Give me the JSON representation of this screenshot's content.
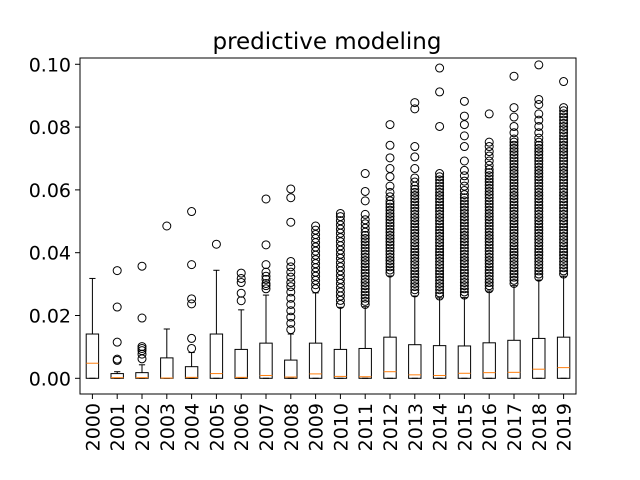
{
  "chart_data": {
    "type": "boxplot",
    "title": "predictive modeling",
    "xlabel": "",
    "ylabel": "",
    "ylim": [
      -0.005,
      0.102
    ],
    "yticks": [
      0.0,
      0.02,
      0.04,
      0.06,
      0.08,
      0.1
    ],
    "ytick_labels": [
      "0.00",
      "0.02",
      "0.04",
      "0.06",
      "0.08",
      "0.10"
    ],
    "grid": false,
    "legend": "none",
    "colors": {
      "box": "#000000",
      "median": "#ff7f0e",
      "flier": "#000000"
    },
    "categories": [
      "2000",
      "2001",
      "2002",
      "2003",
      "2004",
      "2005",
      "2006",
      "2007",
      "2008",
      "2009",
      "2010",
      "2011",
      "2012",
      "2013",
      "2014",
      "2015",
      "2016",
      "2017",
      "2018",
      "2019"
    ],
    "boxes": [
      {
        "year": "2000",
        "whislo": 0.0,
        "q1": 0.0,
        "med": 0.0048,
        "q3": 0.0141,
        "whishi": 0.0318,
        "fliers": []
      },
      {
        "year": "2001",
        "whislo": 0.0,
        "q1": 0.0,
        "med": 0.0002,
        "q3": 0.0015,
        "whishi": 0.0021,
        "fliers": [
          0.0057,
          0.0061,
          0.0115,
          0.0227,
          0.0343
        ]
      },
      {
        "year": "2002",
        "whislo": 0.0,
        "q1": 0.0,
        "med": 0.0002,
        "q3": 0.0018,
        "whishi": 0.0043,
        "fliers": [
          0.0062,
          0.0077,
          0.0088,
          0.0095,
          0.0101,
          0.0192,
          0.0357
        ]
      },
      {
        "year": "2003",
        "whislo": 0.0,
        "q1": 0.0,
        "med": 0.0001,
        "q3": 0.0065,
        "whishi": 0.0157,
        "fliers": [
          0.0485
        ]
      },
      {
        "year": "2004",
        "whislo": 0.0,
        "q1": 0.0,
        "med": 0.0003,
        "q3": 0.0037,
        "whishi": 0.0082,
        "fliers": [
          0.0095,
          0.0127,
          0.0237,
          0.0253,
          0.0362,
          0.0531
        ]
      },
      {
        "year": "2005",
        "whislo": 0.0,
        "q1": 0.0,
        "med": 0.0015,
        "q3": 0.0141,
        "whishi": 0.0344,
        "fliers": [
          0.0427
        ]
      },
      {
        "year": "2006",
        "whislo": 0.0,
        "q1": 0.0,
        "med": 0.0003,
        "q3": 0.0092,
        "whishi": 0.0218,
        "fliers": [
          0.0247,
          0.0271,
          0.0305,
          0.0318,
          0.0335
        ]
      },
      {
        "year": "2007",
        "whislo": 0.0,
        "q1": 0.0,
        "med": 0.0009,
        "q3": 0.0112,
        "whishi": 0.0265,
        "fliers": [
          0.0285,
          0.0295,
          0.0302,
          0.0315,
          0.0325,
          0.0338,
          0.0362,
          0.0425,
          0.0571
        ]
      },
      {
        "year": "2008",
        "whislo": 0.0,
        "q1": 0.0,
        "med": 0.0004,
        "q3": 0.0058,
        "whishi": 0.0141,
        "fliers": [
          0.0155,
          0.0175,
          0.0195,
          0.0215,
          0.0235,
          0.0255,
          0.0275,
          0.0292,
          0.0305,
          0.0322,
          0.0338,
          0.0355,
          0.0372,
          0.0497,
          0.0575,
          0.0603
        ]
      },
      {
        "year": "2009",
        "whislo": 0.0,
        "q1": 0.0,
        "med": 0.0014,
        "q3": 0.0112,
        "whishi": 0.0272,
        "fliers": [
          0.0285,
          0.0298,
          0.0312,
          0.0325,
          0.0338,
          0.0352,
          0.0365,
          0.0378,
          0.0392,
          0.0405,
          0.0418,
          0.0432,
          0.0445,
          0.0458,
          0.0472,
          0.0485
        ]
      },
      {
        "year": "2010",
        "whislo": 0.0,
        "q1": 0.0,
        "med": 0.0006,
        "q3": 0.0092,
        "whishi": 0.0226,
        "fliers": [
          0.0235,
          0.0248,
          0.0262,
          0.0275,
          0.0288,
          0.0302,
          0.0315,
          0.0328,
          0.0342,
          0.0355,
          0.0368,
          0.0382,
          0.0395,
          0.0408,
          0.0422,
          0.0435,
          0.0448,
          0.0462,
          0.0475,
          0.0488,
          0.0502,
          0.0515,
          0.0525
        ]
      },
      {
        "year": "2011",
        "whislo": 0.0,
        "q1": 0.0,
        "med": 0.0005,
        "q3": 0.0095,
        "whishi": 0.0228,
        "fliers": [
          0.0235,
          0.0245,
          0.0255,
          0.0265,
          0.0275,
          0.0285,
          0.0295,
          0.0305,
          0.0315,
          0.0325,
          0.0335,
          0.0345,
          0.0355,
          0.0365,
          0.0375,
          0.0385,
          0.0395,
          0.0405,
          0.0415,
          0.0425,
          0.0435,
          0.0445,
          0.0455,
          0.0465,
          0.0478,
          0.0492,
          0.0505,
          0.0522,
          0.0565,
          0.0595,
          0.0652
        ]
      },
      {
        "year": "2012",
        "whislo": 0.0,
        "q1": 0.0,
        "med": 0.0021,
        "q3": 0.0131,
        "whishi": 0.0326,
        "fliers": [
          0.0335,
          0.0345,
          0.0355,
          0.0365,
          0.0375,
          0.0385,
          0.0395,
          0.0405,
          0.0415,
          0.0425,
          0.0435,
          0.0445,
          0.0455,
          0.0465,
          0.0475,
          0.0485,
          0.0495,
          0.0505,
          0.0515,
          0.0525,
          0.0535,
          0.0545,
          0.0555,
          0.0565,
          0.0578,
          0.0592,
          0.0612,
          0.0642,
          0.0668,
          0.0702,
          0.0742,
          0.0808
        ]
      },
      {
        "year": "2013",
        "whislo": 0.0,
        "q1": 0.0,
        "med": 0.0011,
        "q3": 0.0107,
        "whishi": 0.0262,
        "fliers": [
          0.0272,
          0.0282,
          0.0292,
          0.0302,
          0.0312,
          0.0322,
          0.0332,
          0.0342,
          0.0352,
          0.0362,
          0.0372,
          0.0382,
          0.0392,
          0.0402,
          0.0412,
          0.0422,
          0.0432,
          0.0442,
          0.0452,
          0.0462,
          0.0472,
          0.0482,
          0.0492,
          0.0502,
          0.0512,
          0.0522,
          0.0532,
          0.0542,
          0.0552,
          0.0562,
          0.0572,
          0.0582,
          0.0592,
          0.0602,
          0.0612,
          0.0625,
          0.0638,
          0.0668,
          0.0705,
          0.0738,
          0.0858,
          0.0878
        ]
      },
      {
        "year": "2014",
        "whislo": 0.0,
        "q1": 0.0,
        "med": 0.0009,
        "q3": 0.0104,
        "whishi": 0.0256,
        "fliers": [
          0.0262,
          0.0272,
          0.0282,
          0.0292,
          0.0302,
          0.0312,
          0.0322,
          0.0332,
          0.0342,
          0.0352,
          0.0362,
          0.0372,
          0.0382,
          0.0392,
          0.0402,
          0.0412,
          0.0422,
          0.0432,
          0.0442,
          0.0452,
          0.0462,
          0.0472,
          0.0482,
          0.0492,
          0.0502,
          0.0512,
          0.0522,
          0.0532,
          0.0542,
          0.0552,
          0.0562,
          0.0572,
          0.0582,
          0.0592,
          0.0602,
          0.0612,
          0.0622,
          0.0632,
          0.0642,
          0.0652,
          0.0802,
          0.0912,
          0.0988
        ]
      },
      {
        "year": "2015",
        "whislo": 0.0,
        "q1": 0.0,
        "med": 0.0016,
        "q3": 0.0103,
        "whishi": 0.0257,
        "fliers": [
          0.0265,
          0.0275,
          0.0285,
          0.0295,
          0.0305,
          0.0315,
          0.0325,
          0.0335,
          0.0345,
          0.0355,
          0.0365,
          0.0375,
          0.0385,
          0.0395,
          0.0405,
          0.0415,
          0.0425,
          0.0435,
          0.0445,
          0.0455,
          0.0465,
          0.0475,
          0.0485,
          0.0495,
          0.0505,
          0.0515,
          0.0525,
          0.0535,
          0.0545,
          0.0555,
          0.0565,
          0.0575,
          0.0585,
          0.0598,
          0.0612,
          0.0628,
          0.0645,
          0.0662,
          0.0692,
          0.0738,
          0.0772,
          0.0808,
          0.0835,
          0.0882
        ]
      },
      {
        "year": "2016",
        "whislo": 0.0,
        "q1": 0.0,
        "med": 0.0018,
        "q3": 0.0113,
        "whishi": 0.0278,
        "fliers": [
          0.0285,
          0.0295,
          0.0305,
          0.0315,
          0.0325,
          0.0335,
          0.0345,
          0.0355,
          0.0365,
          0.0375,
          0.0385,
          0.0395,
          0.0405,
          0.0415,
          0.0425,
          0.0435,
          0.0445,
          0.0455,
          0.0465,
          0.0475,
          0.0485,
          0.0495,
          0.0505,
          0.0515,
          0.0525,
          0.0535,
          0.0545,
          0.0555,
          0.0565,
          0.0575,
          0.0585,
          0.0595,
          0.0605,
          0.0615,
          0.0625,
          0.0635,
          0.0645,
          0.0655,
          0.0665,
          0.0678,
          0.0692,
          0.0708,
          0.0722,
          0.0738,
          0.0752,
          0.0842
        ]
      },
      {
        "year": "2017",
        "whislo": 0.0,
        "q1": 0.0,
        "med": 0.0019,
        "q3": 0.0121,
        "whishi": 0.0295,
        "fliers": [
          0.0302,
          0.0312,
          0.0322,
          0.0332,
          0.0342,
          0.0352,
          0.0362,
          0.0372,
          0.0382,
          0.0392,
          0.0402,
          0.0412,
          0.0422,
          0.0432,
          0.0442,
          0.0452,
          0.0462,
          0.0472,
          0.0482,
          0.0492,
          0.0502,
          0.0512,
          0.0522,
          0.0532,
          0.0542,
          0.0552,
          0.0562,
          0.0572,
          0.0582,
          0.0592,
          0.0602,
          0.0612,
          0.0622,
          0.0632,
          0.0642,
          0.0652,
          0.0662,
          0.0672,
          0.0682,
          0.0692,
          0.0702,
          0.0712,
          0.0722,
          0.0732,
          0.0742,
          0.0752,
          0.0762,
          0.0782,
          0.0802,
          0.0832,
          0.0862,
          0.0962
        ]
      },
      {
        "year": "2018",
        "whislo": 0.0,
        "q1": 0.0,
        "med": 0.0029,
        "q3": 0.0127,
        "whishi": 0.0313,
        "fliers": [
          0.0322,
          0.0332,
          0.0342,
          0.0352,
          0.0362,
          0.0372,
          0.0382,
          0.0392,
          0.0402,
          0.0412,
          0.0422,
          0.0432,
          0.0442,
          0.0452,
          0.0462,
          0.0472,
          0.0482,
          0.0492,
          0.0502,
          0.0512,
          0.0522,
          0.0532,
          0.0542,
          0.0552,
          0.0562,
          0.0572,
          0.0582,
          0.0592,
          0.0602,
          0.0612,
          0.0622,
          0.0632,
          0.0642,
          0.0652,
          0.0662,
          0.0672,
          0.0682,
          0.0692,
          0.0702,
          0.0712,
          0.0722,
          0.0732,
          0.0742,
          0.0752,
          0.0765,
          0.0782,
          0.0802,
          0.0822,
          0.0842,
          0.0872,
          0.0888,
          0.0998
        ]
      },
      {
        "year": "2019",
        "whislo": 0.0,
        "q1": 0.0,
        "med": 0.0034,
        "q3": 0.0131,
        "whishi": 0.0325,
        "fliers": [
          0.0332,
          0.0342,
          0.0352,
          0.0362,
          0.0372,
          0.0382,
          0.0392,
          0.0402,
          0.0412,
          0.0422,
          0.0432,
          0.0442,
          0.0452,
          0.0462,
          0.0472,
          0.0482,
          0.0492,
          0.0502,
          0.0512,
          0.0522,
          0.0532,
          0.0542,
          0.0552,
          0.0562,
          0.0572,
          0.0582,
          0.0592,
          0.0602,
          0.0612,
          0.0622,
          0.0632,
          0.0642,
          0.0652,
          0.0662,
          0.0672,
          0.0682,
          0.0692,
          0.0702,
          0.0712,
          0.0722,
          0.0732,
          0.0742,
          0.0752,
          0.0762,
          0.0772,
          0.0782,
          0.0792,
          0.0802,
          0.0812,
          0.0822,
          0.0832,
          0.0842,
          0.0852,
          0.0862,
          0.0945
        ]
      }
    ]
  }
}
